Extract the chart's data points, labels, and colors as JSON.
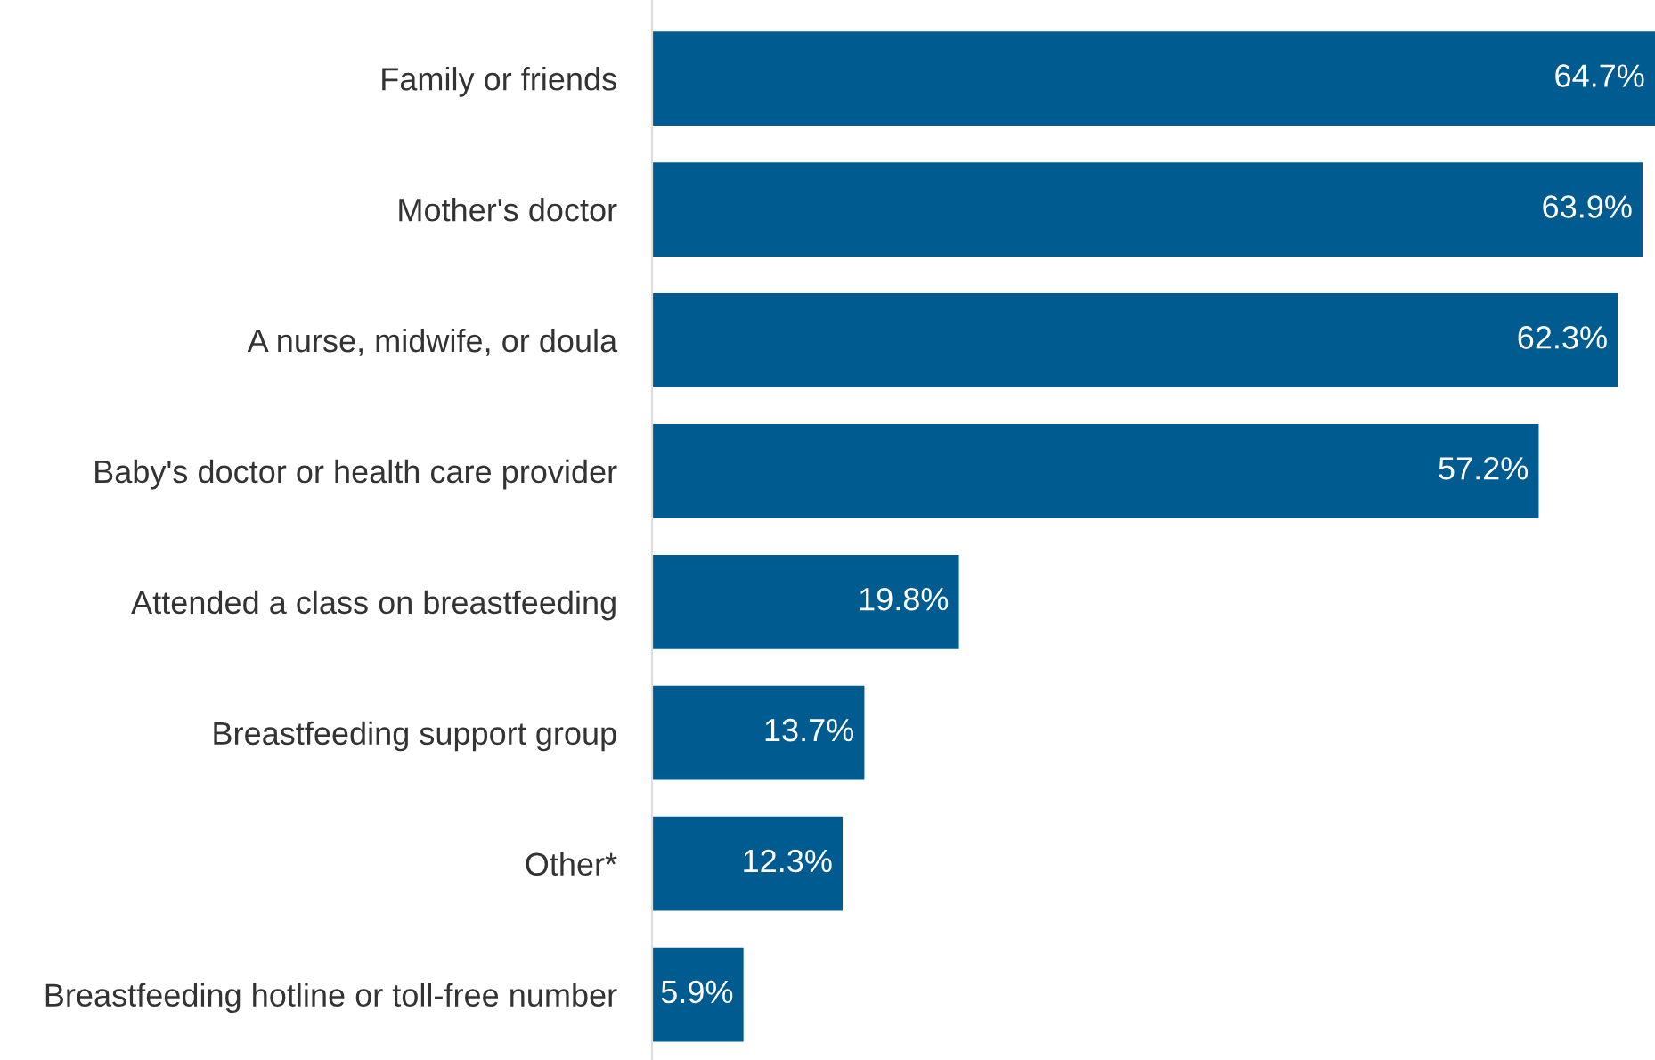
{
  "chart_data": {
    "type": "bar",
    "orientation": "horizontal",
    "categories": [
      "Family or friends",
      "Mother's doctor",
      "A nurse, midwife, or doula",
      "Baby's doctor or health care provider",
      "Attended a class on breastfeeding",
      "Breastfeeding support group",
      "Other*",
      "Breastfeeding hotline or toll-free number"
    ],
    "values": [
      64.7,
      63.9,
      62.3,
      57.2,
      19.8,
      13.7,
      12.3,
      5.9
    ],
    "value_labels": [
      "64.7%",
      "63.9%",
      "62.3%",
      "57.2%",
      "19.8%",
      "13.7%",
      "12.3%",
      "5.9%"
    ],
    "color": "#005b91",
    "grid": false,
    "legend": false
  }
}
